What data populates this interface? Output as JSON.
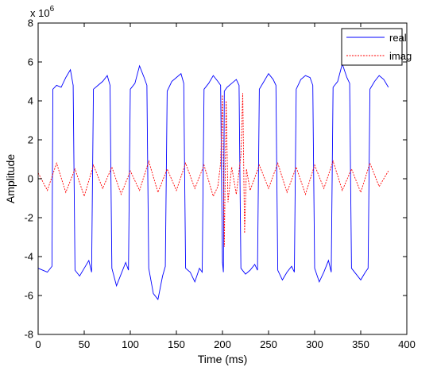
{
  "chart_data": {
    "type": "line",
    "xlabel": "Time (ms)",
    "ylabel": "Amplitude",
    "y_exponent_label": "x 10",
    "y_exponent_power": "6",
    "xlim": [
      0,
      400
    ],
    "ylim": [
      -8,
      8
    ],
    "x_ticks": [
      "0",
      "50",
      "100",
      "150",
      "200",
      "250",
      "300",
      "350",
      "400"
    ],
    "y_ticks": [
      "8",
      "6",
      "4",
      "2",
      "0",
      "-2",
      "-4",
      "-6",
      "-8"
    ],
    "grid": false,
    "legend_position": "top-right",
    "series": [
      {
        "name": "real",
        "color": "#0000ff",
        "x": [
          0,
          10,
          15,
          16,
          20,
          25,
          30,
          35,
          38,
          39,
          40,
          45,
          50,
          55,
          58,
          59,
          60,
          65,
          70,
          75,
          78,
          79,
          80,
          85,
          90,
          95,
          98,
          99,
          100,
          105,
          110,
          115,
          118,
          119,
          120,
          125,
          130,
          135,
          138,
          139,
          140,
          145,
          150,
          155,
          158,
          159,
          160,
          165,
          170,
          175,
          178,
          179,
          180,
          185,
          190,
          195,
          198,
          199,
          200,
          201,
          202,
          205,
          210,
          215,
          218,
          219,
          220,
          225,
          230,
          235,
          238,
          239,
          240,
          245,
          250,
          255,
          258,
          259,
          260,
          265,
          270,
          275,
          278,
          279,
          280,
          285,
          290,
          295,
          298,
          299,
          300,
          305,
          310,
          315,
          318,
          319,
          320,
          325,
          330,
          335,
          338,
          339,
          340,
          345,
          350,
          355,
          358,
          359,
          360,
          365,
          370,
          375,
          380
        ],
        "y": [
          -4.6,
          -4.8,
          -4.5,
          4.6,
          4.8,
          4.7,
          5.2,
          5.6,
          4.8,
          0,
          -4.7,
          -5.0,
          -4.6,
          -4.2,
          -4.8,
          0,
          4.6,
          4.8,
          5.0,
          5.3,
          4.8,
          0,
          -4.6,
          -5.5,
          -4.9,
          -4.3,
          -4.7,
          0,
          4.6,
          4.9,
          5.8,
          5.2,
          4.8,
          0,
          -4.6,
          -5.9,
          -6.2,
          -5.0,
          -4.5,
          0,
          4.5,
          5.0,
          5.2,
          5.4,
          4.9,
          0,
          -4.6,
          -4.8,
          -5.3,
          -4.6,
          -4.8,
          0,
          4.6,
          4.9,
          5.3,
          5.0,
          4.8,
          0,
          -4.3,
          -4.8,
          4.5,
          4.7,
          4.9,
          5.1,
          4.8,
          0,
          -4.6,
          -4.9,
          -4.7,
          -4.4,
          -4.7,
          0,
          4.6,
          5.0,
          5.4,
          5.1,
          4.8,
          0,
          -4.7,
          -5.2,
          -4.8,
          -4.5,
          -4.8,
          0,
          4.6,
          5.1,
          5.3,
          5.2,
          4.8,
          0,
          -4.6,
          -5.3,
          -4.8,
          -4.2,
          -4.8,
          0,
          4.7,
          5.0,
          5.9,
          5.2,
          4.9,
          0,
          -4.6,
          -4.9,
          -5.2,
          -4.8,
          -4.6,
          0,
          4.6,
          5.0,
          5.3,
          5.1,
          4.7
        ]
      },
      {
        "name": "imag",
        "color": "#ff0000",
        "x": [
          0,
          10,
          20,
          30,
          40,
          50,
          60,
          70,
          80,
          90,
          100,
          110,
          120,
          130,
          140,
          150,
          160,
          170,
          180,
          190,
          195,
          198,
          200,
          202,
          204,
          206,
          210,
          215,
          220,
          222,
          224,
          226,
          230,
          240,
          250,
          260,
          270,
          280,
          290,
          300,
          310,
          320,
          330,
          340,
          350,
          360,
          370,
          380
        ],
        "y": [
          0.3,
          -0.6,
          0.8,
          -0.7,
          0.5,
          -0.9,
          0.7,
          -0.5,
          0.6,
          -0.8,
          0.4,
          -0.6,
          0.9,
          -0.7,
          0.5,
          -0.6,
          0.8,
          -0.5,
          0.7,
          -0.9,
          -0.4,
          0.8,
          4.3,
          -3.5,
          4.0,
          -1.2,
          0.6,
          -0.8,
          1.2,
          4.4,
          -2.8,
          0.5,
          -0.6,
          0.7,
          -0.5,
          0.8,
          -0.7,
          0.6,
          -0.8,
          0.7,
          -0.5,
          0.9,
          -0.6,
          0.5,
          -0.7,
          0.8,
          -0.4,
          0.4
        ]
      }
    ]
  }
}
